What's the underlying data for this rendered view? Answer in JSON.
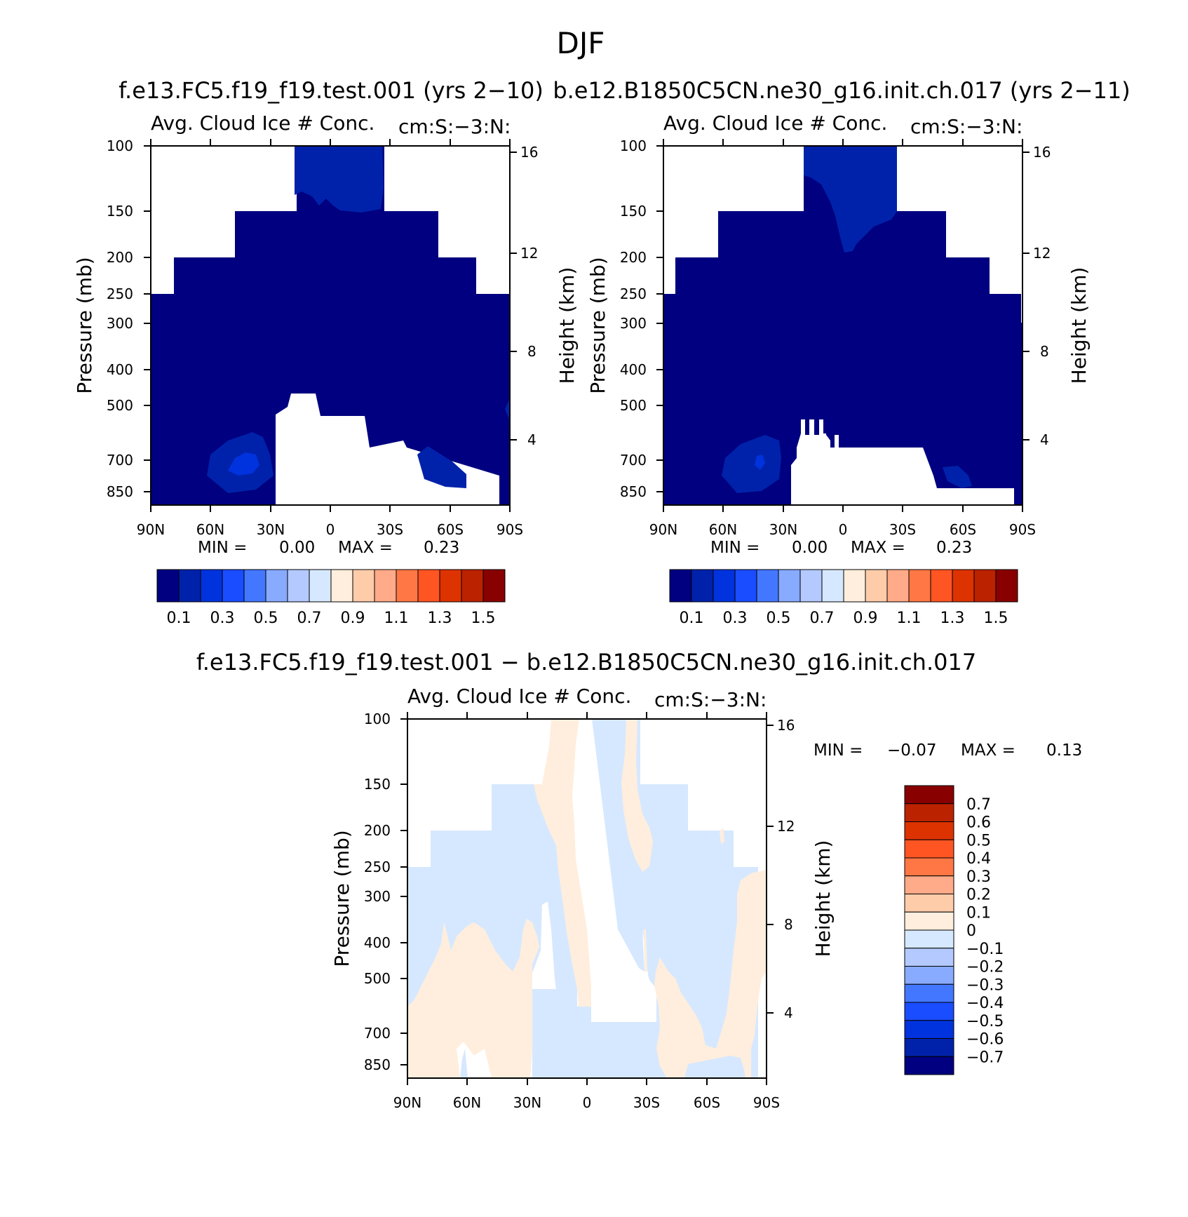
{
  "figure": {
    "title": "DJF",
    "diff_title": "f.e13.FC5.f19_f19.test.001 − b.e12.B1850C5CN.ne30_g16.init.ch.017"
  },
  "colors": {
    "levels": [
      "#000080",
      "#0022aa",
      "#0033dd",
      "#1a4dff",
      "#4477ff",
      "#88aaff",
      "#b3c9ff",
      "#d6e8ff",
      "#ffeedd",
      "#ffccaa",
      "#ffaa88",
      "#ff7744",
      "#ff5522",
      "#dd3300",
      "#bb2200",
      "#880000"
    ],
    "diff_levels": [
      "#000080",
      "#0022aa",
      "#0033dd",
      "#1a4dff",
      "#4477ff",
      "#88aaff",
      "#b3c9ff",
      "#d6e8ff",
      "#ffeedd",
      "#ffccaa",
      "#ffaa88",
      "#ff7744",
      "#ff5522",
      "#dd3300",
      "#bb2200",
      "#880000"
    ]
  },
  "chart_data": [
    {
      "type": "heatmap",
      "title": "f.e13.FC5.f19_f19.test.001 (yrs 2−10)",
      "left_string": "Avg. Cloud Ice # Conc.",
      "right_string": "cm:S:−3:N:",
      "ylabel": "Pressure (mb)",
      "ylabel_right": "Height (km)",
      "x_ticks": [
        "90N",
        "60N",
        "30N",
        "0",
        "30S",
        "60S",
        "90S"
      ],
      "y_ticks": [
        "100",
        "150",
        "200",
        "250",
        "300",
        "400",
        "500",
        "700",
        "850"
      ],
      "height_ticks": [
        "16",
        "12",
        "8",
        "4"
      ],
      "min_label": "MIN =",
      "min_value": "0.00",
      "max_label": "MAX =",
      "max_value": "0.23",
      "colorbar_labels": [
        "0.1",
        "0.3",
        "0.5",
        "0.7",
        "0.9",
        "1.1",
        "1.3",
        "1.5"
      ]
    },
    {
      "type": "heatmap",
      "title": "b.e12.B1850C5CN.ne30_g16.init.ch.017 (yrs 2−11)",
      "left_string": "Avg. Cloud Ice # Conc.",
      "right_string": "cm:S:−3:N:",
      "ylabel": "Pressure (mb)",
      "ylabel_right": "Height (km)",
      "x_ticks": [
        "90N",
        "60N",
        "30N",
        "0",
        "30S",
        "60S",
        "90S"
      ],
      "y_ticks": [
        "100",
        "150",
        "200",
        "250",
        "300",
        "400",
        "500",
        "700",
        "850"
      ],
      "height_ticks": [
        "16",
        "12",
        "8",
        "4"
      ],
      "min_label": "MIN =",
      "min_value": "0.00",
      "max_label": "MAX =",
      "max_value": "0.23",
      "colorbar_labels": [
        "0.1",
        "0.3",
        "0.5",
        "0.7",
        "0.9",
        "1.1",
        "1.3",
        "1.5"
      ]
    },
    {
      "type": "heatmap",
      "title": "",
      "left_string": "Avg. Cloud Ice # Conc.",
      "right_string": "cm:S:−3:N:",
      "ylabel": "Pressure (mb)",
      "ylabel_right": "Height (km)",
      "x_ticks": [
        "90N",
        "60N",
        "30N",
        "0",
        "30S",
        "60S",
        "90S"
      ],
      "y_ticks": [
        "100",
        "150",
        "200",
        "250",
        "300",
        "400",
        "500",
        "700",
        "850"
      ],
      "height_ticks": [
        "16",
        "12",
        "8",
        "4"
      ],
      "min_label": "MIN =",
      "min_value": "−0.07",
      "max_label": "MAX =",
      "max_value": "0.13",
      "colorbar_labels": [
        "0.7",
        "0.6",
        "0.5",
        "0.4",
        "0.3",
        "0.2",
        "0.1",
        "0",
        "−0.1",
        "−0.2",
        "−0.3",
        "−0.4",
        "−0.5",
        "−0.6",
        "−0.7"
      ]
    }
  ]
}
